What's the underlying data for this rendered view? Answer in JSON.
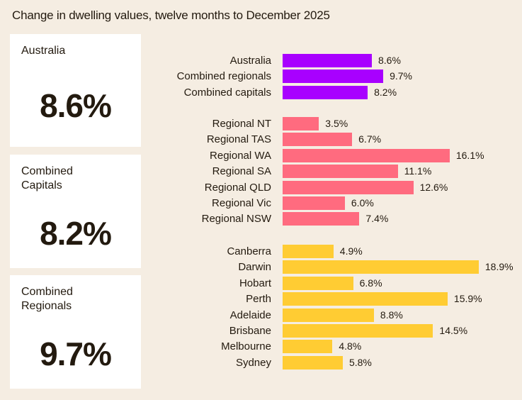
{
  "chart_data": {
    "type": "bar",
    "orientation": "horizontal",
    "title": "Change in dwelling values, twelve months to December 2025",
    "unit": "%",
    "xlim": [
      0,
      20
    ],
    "grid": false,
    "groups": [
      {
        "color": "#a800ff",
        "categories": [
          "Australia",
          "Combined regionals",
          "Combined capitals"
        ],
        "values": [
          8.6,
          9.7,
          8.2
        ],
        "labels": [
          "8.6%",
          "9.7%",
          "8.2%"
        ]
      },
      {
        "color": "#ff6b7f",
        "categories": [
          "Regional NT",
          "Regional TAS",
          "Regional WA",
          "Regional SA",
          "Regional QLD",
          "Regional Vic",
          "Regional NSW"
        ],
        "values": [
          3.5,
          6.7,
          16.1,
          11.1,
          12.6,
          6.0,
          7.4
        ],
        "labels": [
          "3.5%",
          "6.7%",
          "16.1%",
          "11.1%",
          "12.6%",
          "6.0%",
          "7.4%"
        ]
      },
      {
        "color": "#ffcc33",
        "categories": [
          "Canberra",
          "Darwin",
          "Hobart",
          "Perth",
          "Adelaide",
          "Brisbane",
          "Melbourne",
          "Sydney"
        ],
        "values": [
          4.9,
          18.9,
          6.8,
          15.9,
          8.8,
          14.5,
          4.8,
          5.8
        ],
        "labels": [
          "4.9%",
          "18.9%",
          "6.8%",
          "15.9%",
          "8.8%",
          "14.5%",
          "4.8%",
          "5.8%"
        ]
      }
    ]
  },
  "cards": [
    {
      "label": "Australia",
      "value": "8.6%"
    },
    {
      "label": "Combined Capitals",
      "value": "8.2%"
    },
    {
      "label": "Combined Regionals",
      "value": "9.7%"
    }
  ]
}
